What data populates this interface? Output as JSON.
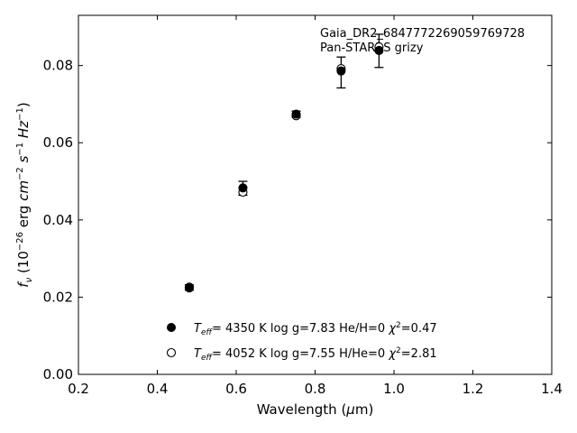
{
  "chart_data": {
    "type": "scatter",
    "annotation": [
      "Gaia_DR2_6847772269059769728",
      "Pan-STARRS grizy"
    ],
    "xlabel": "Wavelength (μm)",
    "ylabel": "f_ν (10^-26 erg cm^-2 s^-1 Hz^-1)",
    "xlim": [
      0.2,
      1.4
    ],
    "ylim": [
      0.0,
      0.093
    ],
    "xticks": [
      "0.2",
      "0.4",
      "0.6",
      "0.8",
      "1.0",
      "1.2",
      "1.4"
    ],
    "yticks": [
      "0.00",
      "0.02",
      "0.04",
      "0.06",
      "0.08"
    ],
    "x": [
      0.481,
      0.617,
      0.752,
      0.866,
      0.962
    ],
    "observed": {
      "y": [
        0.0225,
        0.0482,
        0.0674,
        0.0782,
        0.0838
      ],
      "err": [
        0.0007,
        0.0018,
        0.0008,
        0.004,
        0.0043
      ]
    },
    "series": [
      {
        "marker": "filled",
        "legend": {
          "teff_label": "T_eff=",
          "teff": "4350 K",
          "logg": "log g=7.83",
          "comp": "He/H=0",
          "chi2": "χ²=0.47"
        },
        "values": [
          0.0226,
          0.0483,
          0.0674,
          0.0786,
          0.0839
        ]
      },
      {
        "marker": "open",
        "legend": {
          "teff_label": "T_eff=",
          "teff": "4052 K",
          "logg": "log g=7.55",
          "comp": "H/He=0",
          "chi2": "χ²=2.81"
        },
        "values": [
          0.0224,
          0.0472,
          0.067,
          0.0792,
          0.0848
        ]
      }
    ],
    "legend_position": "lower-center",
    "grid": false
  }
}
